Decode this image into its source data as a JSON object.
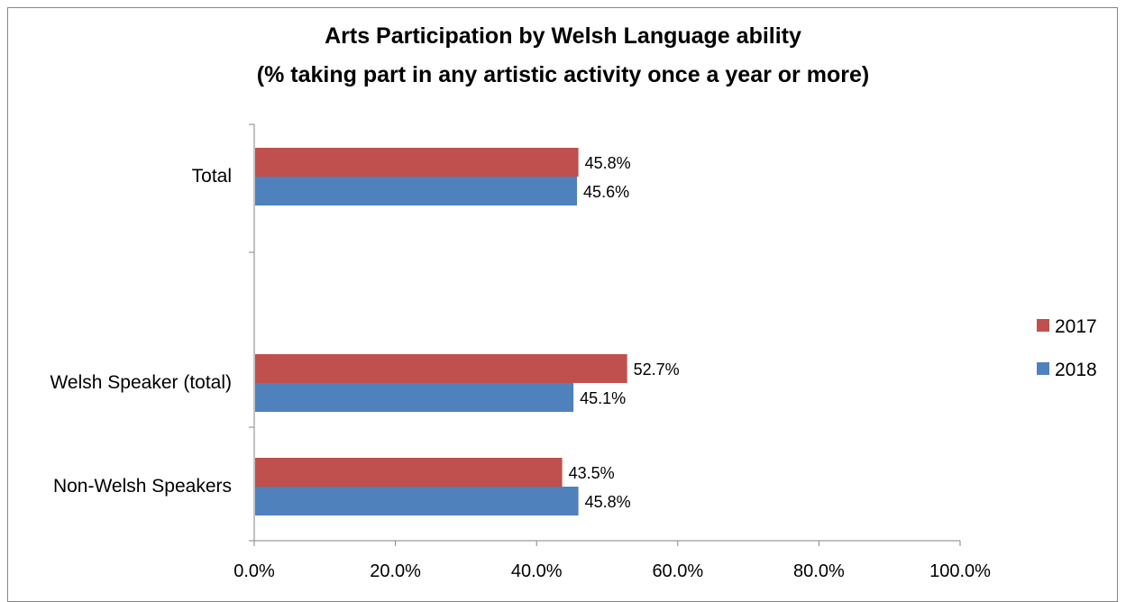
{
  "chart_data": {
    "type": "bar",
    "orientation": "horizontal",
    "title": "Arts Participation by Welsh Language ability",
    "subtitle": "(% taking part in any artistic activity once a year or more)",
    "categories": [
      "Total",
      "Welsh Speaker (total)",
      "Non-Welsh Speakers"
    ],
    "series": [
      {
        "name": "2017",
        "color": "#c0504d",
        "values": [
          45.8,
          52.7,
          43.5
        ],
        "labels": [
          "45.8%",
          "52.7%",
          "43.5%"
        ]
      },
      {
        "name": "2018",
        "color": "#4f81bd",
        "values": [
          45.6,
          45.1,
          45.8
        ],
        "labels": [
          "45.6%",
          "45.1%",
          "45.8%"
        ]
      }
    ],
    "xlim": [
      0,
      100
    ],
    "xticks": [
      0,
      20,
      40,
      60,
      80,
      100
    ],
    "xtick_labels": [
      "0.0%",
      "20.0%",
      "40.0%",
      "60.0%",
      "80.0%",
      "100.0%"
    ],
    "grid": false,
    "legend_position": "right"
  }
}
